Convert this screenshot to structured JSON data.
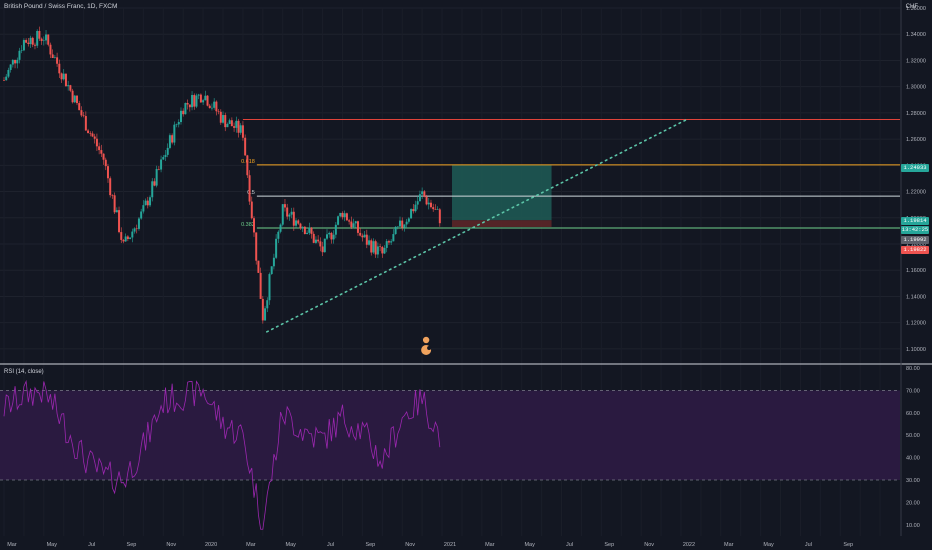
{
  "header": {
    "title": "British Pound / Swiss Franc, 1D, FXCM"
  },
  "currency": "CHF",
  "rsi_label": "RSI (14, close)",
  "price_tags": {
    "top": "1.24033",
    "current": "1.19814",
    "countdown": "13:42:25",
    "low_tag": "1.19992",
    "red": "1.19822"
  },
  "fib_labels": {
    "f618": "0.618",
    "f5": "0.5",
    "f382": "0.382"
  },
  "colors": {
    "bg": "#131722",
    "green_zone": "#1e5c56",
    "red_zone": "#5c2628",
    "fib_618": "#f5a623",
    "fib_5": "#cfd8dc",
    "fib_382": "#6fd08c",
    "resistance": "#e0433a",
    "trend": "#5bc4a7",
    "rsi": "#9c27b0"
  },
  "chart_data": [
    {
      "type": "line",
      "title": "British Pound / Swiss Franc, 1D, FXCM",
      "ylabel": "CHF",
      "ylim": [
        1.09,
        1.36
      ],
      "yticks": [
        "1.36000",
        "1.34000",
        "1.32000",
        "1.30000",
        "1.28000",
        "1.26000",
        "1.24000",
        "1.22000",
        "1.20000",
        "1.18000",
        "1.16000",
        "1.14000",
        "1.12000",
        "1.10000"
      ],
      "xticks": [
        "Mar",
        "May",
        "Jul",
        "Sep",
        "Nov",
        "2020",
        "Mar",
        "May",
        "Jul",
        "Sep",
        "Nov",
        "2021",
        "Mar",
        "May",
        "Jul",
        "Sep",
        "Nov",
        "2022",
        "Mar",
        "May",
        "Jul",
        "Sep"
      ],
      "x": [
        "2019-02",
        "2019-03",
        "2019-04",
        "2019-05",
        "2019-06",
        "2019-07",
        "2019-08",
        "2019-09",
        "2019-10",
        "2019-11",
        "2019-12",
        "2020-01",
        "2020-02",
        "2020-03",
        "2020-04",
        "2020-05",
        "2020-06",
        "2020-07",
        "2020-08",
        "2020-09",
        "2020-10",
        "2020-11",
        "2020-12"
      ],
      "series": [
        {
          "values": [
            1.305,
            1.335,
            1.338,
            1.308,
            1.275,
            1.245,
            1.178,
            1.205,
            1.245,
            1.285,
            1.295,
            1.275,
            1.265,
            1.125,
            1.205,
            1.195,
            1.175,
            1.205,
            1.185,
            1.172,
            1.195,
            1.218,
            1.198
          ]
        }
      ],
      "levels": {
        "resistance": 1.275,
        "fib_618": 1.24033,
        "fib_5": 1.2165,
        "fib_382": 1.19222,
        "entry": 1.19814,
        "stop": 1.193
      },
      "trendline": {
        "from": [
          "2020-03",
          1.113
        ],
        "to": [
          "2021-12",
          1.275
        ]
      },
      "grid": true
    },
    {
      "type": "line",
      "title": "RSI (14, close)",
      "ylim": [
        5,
        80
      ],
      "yticks": [
        "80.00",
        "70.00",
        "60.00",
        "50.00",
        "40.00",
        "30.00",
        "20.00",
        "10.00"
      ],
      "bands": [
        30,
        70
      ],
      "series": [
        {
          "values": [
            62,
            68,
            70,
            55,
            40,
            32,
            30,
            45,
            65,
            68,
            70,
            55,
            50,
            10,
            60,
            52,
            48,
            58,
            52,
            38,
            58,
            66,
            48
          ]
        }
      ]
    }
  ]
}
